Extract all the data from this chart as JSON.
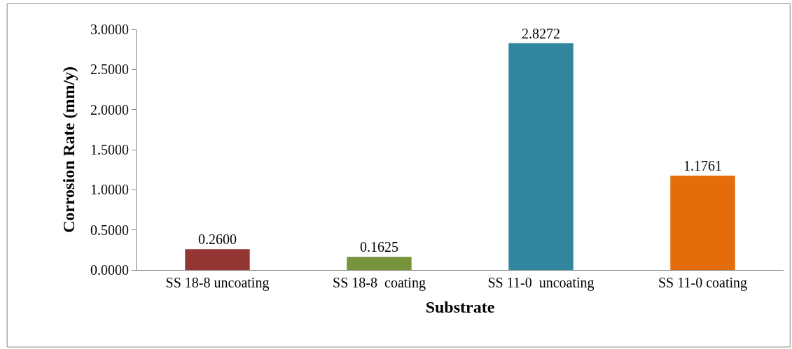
{
  "chart_data": {
    "type": "bar",
    "xlabel": "Substrate",
    "ylabel": "Corrosion Rate (mm/y)",
    "categories": [
      "SS 18-8 uncoating",
      "SS 18-8  coating",
      "SS 11-0  uncoating",
      "SS 11-0 coating"
    ],
    "values": [
      0.26,
      0.1625,
      2.8272,
      1.1761
    ],
    "colors": [
      "#963634",
      "#77933c",
      "#31859c",
      "#e46c0a"
    ],
    "value_labels": [
      "0.2600",
      "0.1625",
      "2.8272",
      "1.1761"
    ],
    "ylim": [
      0,
      3
    ],
    "yticks": [
      {
        "value": 0,
        "label": "0.0000"
      },
      {
        "value": 0.5,
        "label": "0.5000"
      },
      {
        "value": 1,
        "label": "1.0000"
      },
      {
        "value": 1.5,
        "label": "1.5000"
      },
      {
        "value": 2,
        "label": "2.0000"
      },
      {
        "value": 2.5,
        "label": "2.5000"
      },
      {
        "value": 3,
        "label": "3.0000"
      }
    ],
    "legend": false
  }
}
